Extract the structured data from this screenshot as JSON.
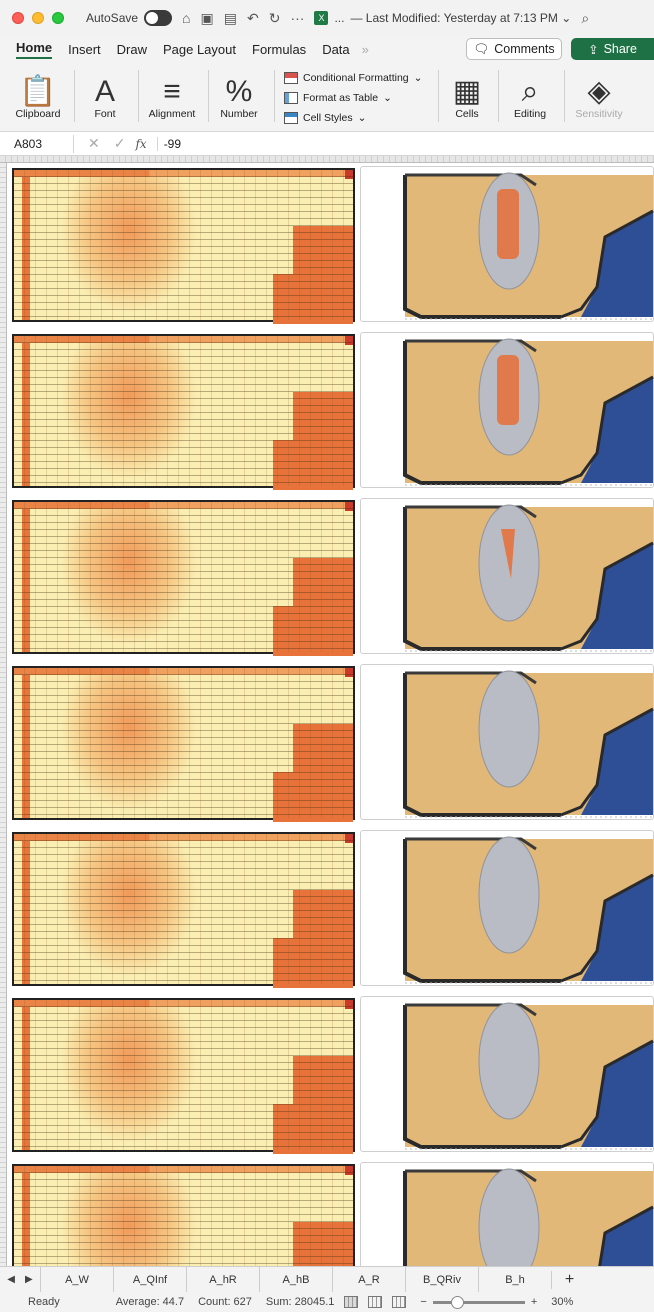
{
  "titlebar": {
    "autosave_label": "AutoSave",
    "document_title": "— Last Modified: Yesterday at 7:13 PM ⌄",
    "ellipsis": "···",
    "file_prefix": "..."
  },
  "ribbon_tabs": [
    "Home",
    "Insert",
    "Draw",
    "Page Layout",
    "Formulas",
    "Data"
  ],
  "ribbon_tabs_overflow": "»",
  "buttons": {
    "comments": "Comments",
    "share": "Share"
  },
  "ribbon": {
    "clipboard": "Clipboard",
    "font": "Font",
    "alignment": "Alignment",
    "number": "Number",
    "conditional_formatting": "Conditional Formatting",
    "format_as_table": "Format as Table",
    "cell_styles": "Cell Styles",
    "cells": "Cells",
    "editing": "Editing",
    "sensitivity": "Sensitivity",
    "font_glyph": "A",
    "number_glyph": "%"
  },
  "formula_bar": {
    "name_box": "A803",
    "fx_label": "fx",
    "value": "-99"
  },
  "sheet_tabs": [
    "A_W",
    "A_QInf",
    "A_hR",
    "A_hB",
    "A_R",
    "B_QRiv",
    "B_h"
  ],
  "status": {
    "ready": "Ready",
    "average": "Average: 44.7",
    "count": "Count: 627",
    "sum": "Sum: 28045.1",
    "zoom": "30%"
  },
  "colors": {
    "heat_low": "#faeeb2",
    "heat_mid": "#f6c481",
    "heat_high": "#e8733a",
    "terrain": "#e2b878",
    "water": "#2e4f95",
    "plume": "#b9bcc4",
    "brand": "#1e7145"
  },
  "snapshots": [
    {
      "plume": "orange-core"
    },
    {
      "plume": "orange-core"
    },
    {
      "plume": "orange-small"
    },
    {
      "plume": "gray"
    },
    {
      "plume": "gray"
    },
    {
      "plume": "gray"
    },
    {
      "plume": "gray"
    }
  ]
}
